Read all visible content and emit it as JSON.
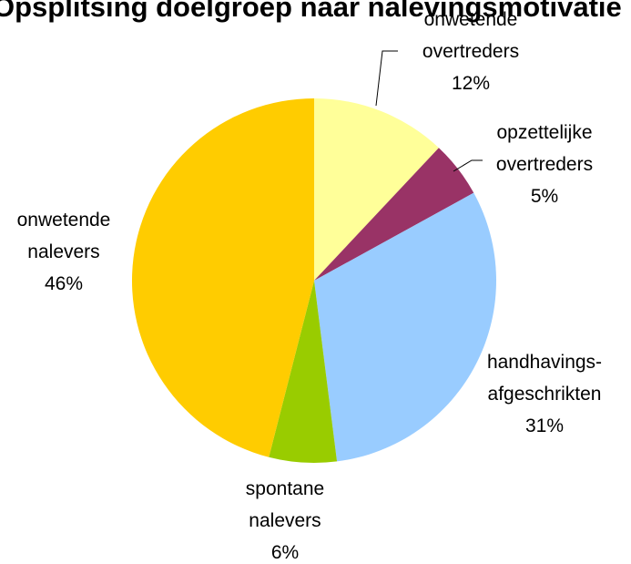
{
  "chart_data": {
    "type": "pie",
    "title": "Opsplitsing doelgroep naar nalevingsmotivatie",
    "start_angle_deg": 0,
    "direction": "clockwise",
    "legend": "none",
    "slices": [
      {
        "label": [
          "onwetende",
          "overtreders"
        ],
        "value": 12,
        "pct_label": "12%",
        "color": "#FFFF99"
      },
      {
        "label": [
          "opzettelijke",
          "overtreders"
        ],
        "value": 5,
        "pct_label": "5%",
        "color": "#993366"
      },
      {
        "label": [
          "handhavings-",
          "afgeschrikten"
        ],
        "value": 31,
        "pct_label": "31%",
        "color": "#99CCFF"
      },
      {
        "label": [
          "spontane",
          "nalevers"
        ],
        "value": 6,
        "pct_label": "6%",
        "color": "#99CC00"
      },
      {
        "label": [
          "onwetende",
          "nalevers"
        ],
        "value": 46,
        "pct_label": "46%",
        "color": "#FFCC00"
      }
    ]
  }
}
